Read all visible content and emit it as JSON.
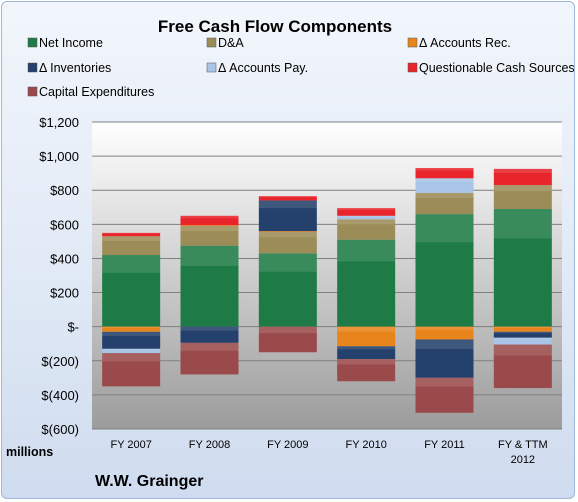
{
  "chart_data": {
    "type": "bar",
    "stacked": true,
    "title": "Free Cash Flow Components",
    "units_label": "millions",
    "footer": "W.W. Grainger",
    "categories": [
      "FY 2007",
      "FY 2008",
      "FY 2009",
      "FY 2010",
      "FY 2011",
      "FY & TTM|2012"
    ],
    "ylim": [
      -600,
      1200
    ],
    "yticks": [
      1200,
      1000,
      800,
      600,
      400,
      200,
      0,
      -200,
      -400,
      -600
    ],
    "ytick_labels": [
      "$1,200",
      "$1,000",
      "$800",
      "$600",
      "$400",
      "$200",
      "$-",
      "$(200)",
      "$(400)",
      "$(600)"
    ],
    "legend_position": "top",
    "series": [
      {
        "name": "Net Income",
        "color": "#1e7b45",
        "values": [
          420,
          475,
          430,
          510,
          660,
          690
        ]
      },
      {
        "name": "D&A",
        "color": "#9c8c58",
        "values": [
          110,
          115,
          125,
          120,
          125,
          140
        ]
      },
      {
        "name": "Δ Accounts Rec.",
        "color": "#e8841c",
        "values": [
          -30,
          5,
          5,
          -115,
          -75,
          -30
        ]
      },
      {
        "name": "Δ Inventories",
        "color": "#24406c",
        "values": [
          -100,
          -95,
          180,
          -75,
          -225,
          -35
        ]
      },
      {
        "name": "Δ Accounts Pay.",
        "color": "#a8c4e6",
        "values": [
          -25,
          0,
          0,
          20,
          85,
          -40
        ]
      },
      {
        "name": "Questionable Cash Sources",
        "color": "#e8252b",
        "values": [
          20,
          55,
          25,
          45,
          60,
          95
        ]
      },
      {
        "name": "Capital Expenditures",
        "color": "#9a4a4a",
        "values": [
          -195,
          -185,
          -150,
          -130,
          -205,
          -255
        ]
      }
    ]
  }
}
